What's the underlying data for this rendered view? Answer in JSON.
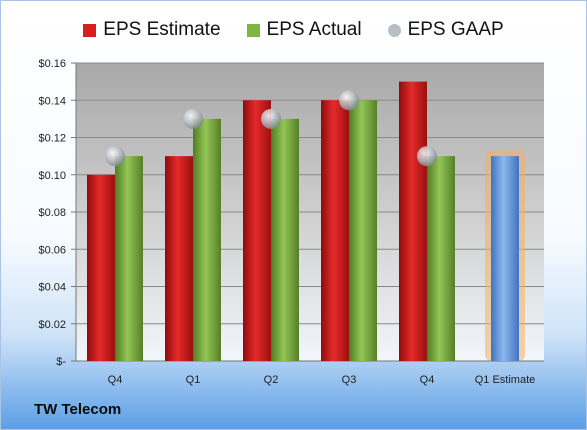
{
  "company": "TW Telecom",
  "legend": [
    {
      "label": "EPS Estimate",
      "color": "#d91e1e",
      "shape": "square"
    },
    {
      "label": "EPS Actual",
      "color": "#7fb540",
      "shape": "square"
    },
    {
      "label": "EPS GAAP",
      "color": "#b8bec6",
      "shape": "circle"
    }
  ],
  "colors": {
    "estimate": "#d91e1e",
    "actual": "#7fb540",
    "gaap": "#b8bec6",
    "forecast": "#6a9fe0",
    "forecast_glow": "#f4b065"
  },
  "chart_data": {
    "type": "bar",
    "categories": [
      "Q4",
      "Q1",
      "Q2",
      "Q3",
      "Q4",
      "Q1 Estimate"
    ],
    "series": [
      {
        "name": "EPS Estimate",
        "values": [
          0.1,
          0.11,
          0.14,
          0.14,
          0.15,
          null
        ]
      },
      {
        "name": "EPS Actual",
        "values": [
          0.11,
          0.13,
          0.13,
          0.14,
          0.11,
          null
        ]
      },
      {
        "name": "EPS GAAP",
        "values": [
          0.11,
          0.13,
          0.13,
          0.14,
          0.11,
          null
        ]
      }
    ],
    "forecast": {
      "category": "Q1 Estimate",
      "value": 0.11
    },
    "yticks": [
      "$-",
      "$0.02",
      "$0.04",
      "$0.06",
      "$0.08",
      "$0.10",
      "$0.12",
      "$0.14",
      "$0.16"
    ],
    "ylim": [
      0,
      0.16
    ],
    "grid": true,
    "legend_position": "top"
  }
}
